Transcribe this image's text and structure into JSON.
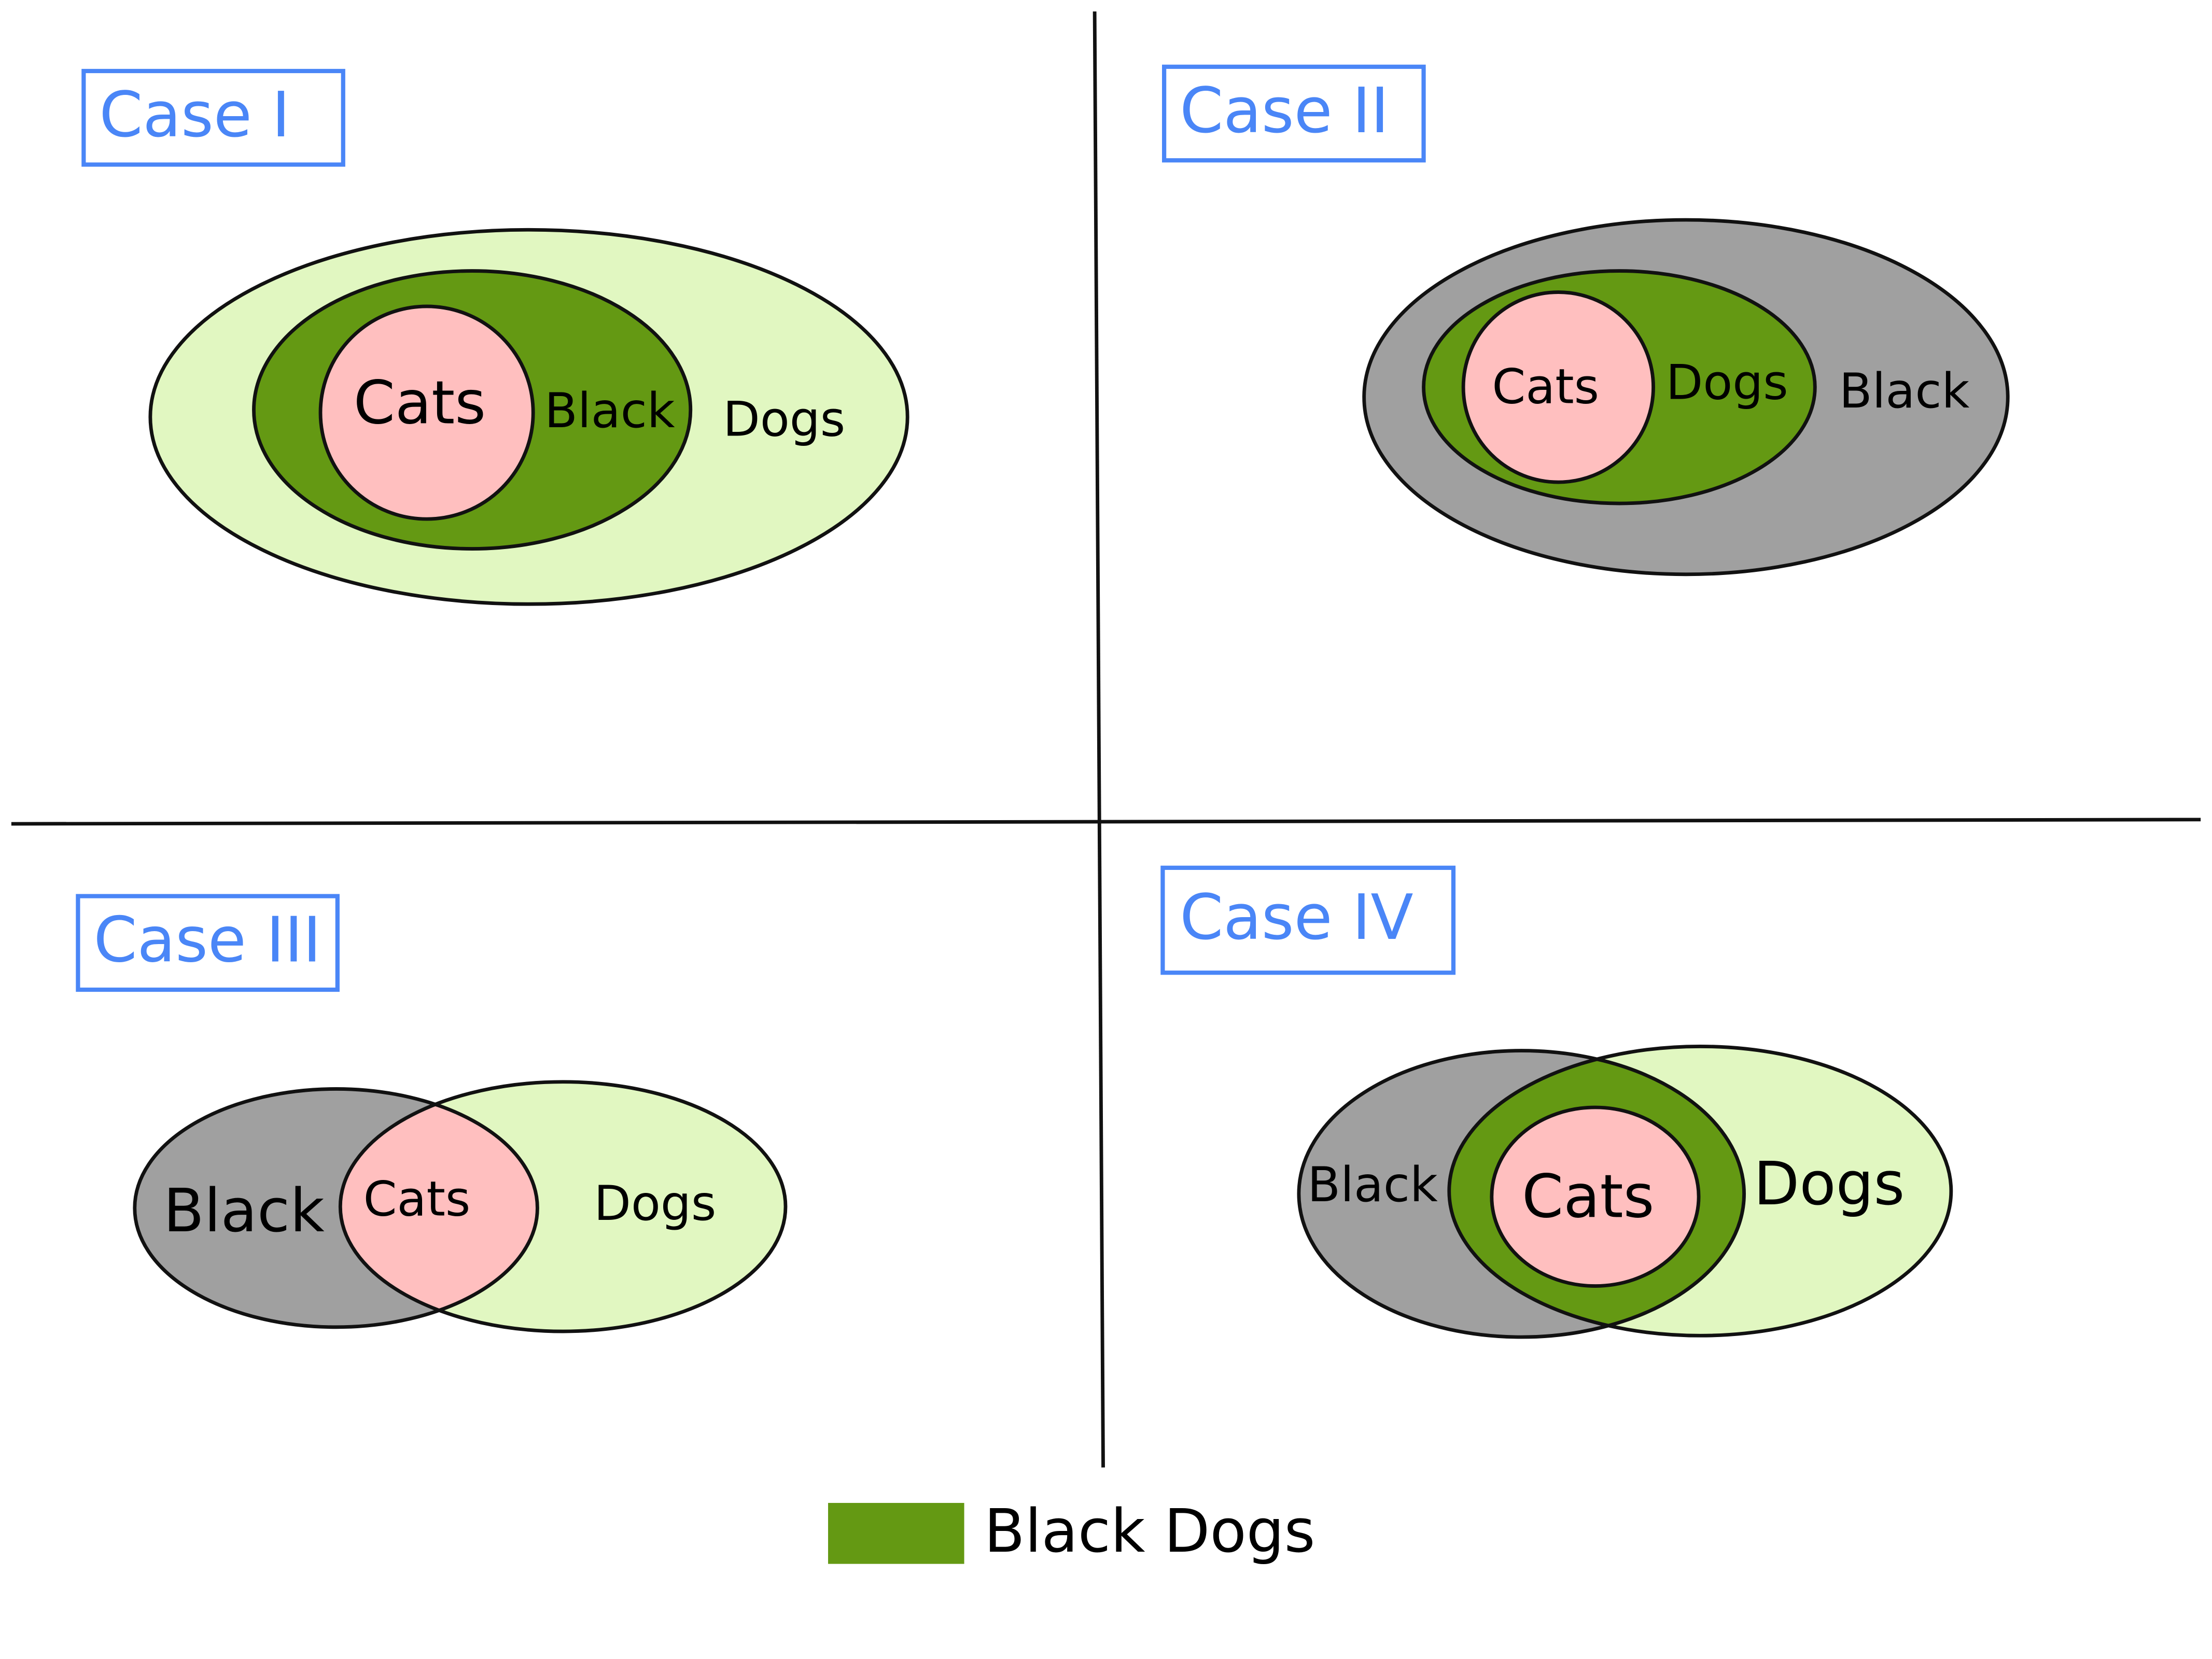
{
  "colors": {
    "dogs": "#e1f7c1",
    "black": "#a0a0a0",
    "black_dogs": "#649913",
    "cats": "#ffbfbf",
    "case_label": "#4a86f7"
  },
  "cases": [
    {
      "title": "Case I",
      "labels": {
        "cats": "Cats",
        "black": "Black",
        "dogs": "Dogs"
      }
    },
    {
      "title": "Case II",
      "labels": {
        "cats": "Cats",
        "dogs": "Dogs",
        "black": "Black"
      }
    },
    {
      "title": "Case III",
      "labels": {
        "black": "Black",
        "cats": "Cats",
        "dogs": "Dogs"
      }
    },
    {
      "title": "Case IV",
      "labels": {
        "black": "Black",
        "cats": "Cats",
        "dogs": "Dogs"
      }
    }
  ],
  "legend": {
    "label": "Black Dogs"
  }
}
